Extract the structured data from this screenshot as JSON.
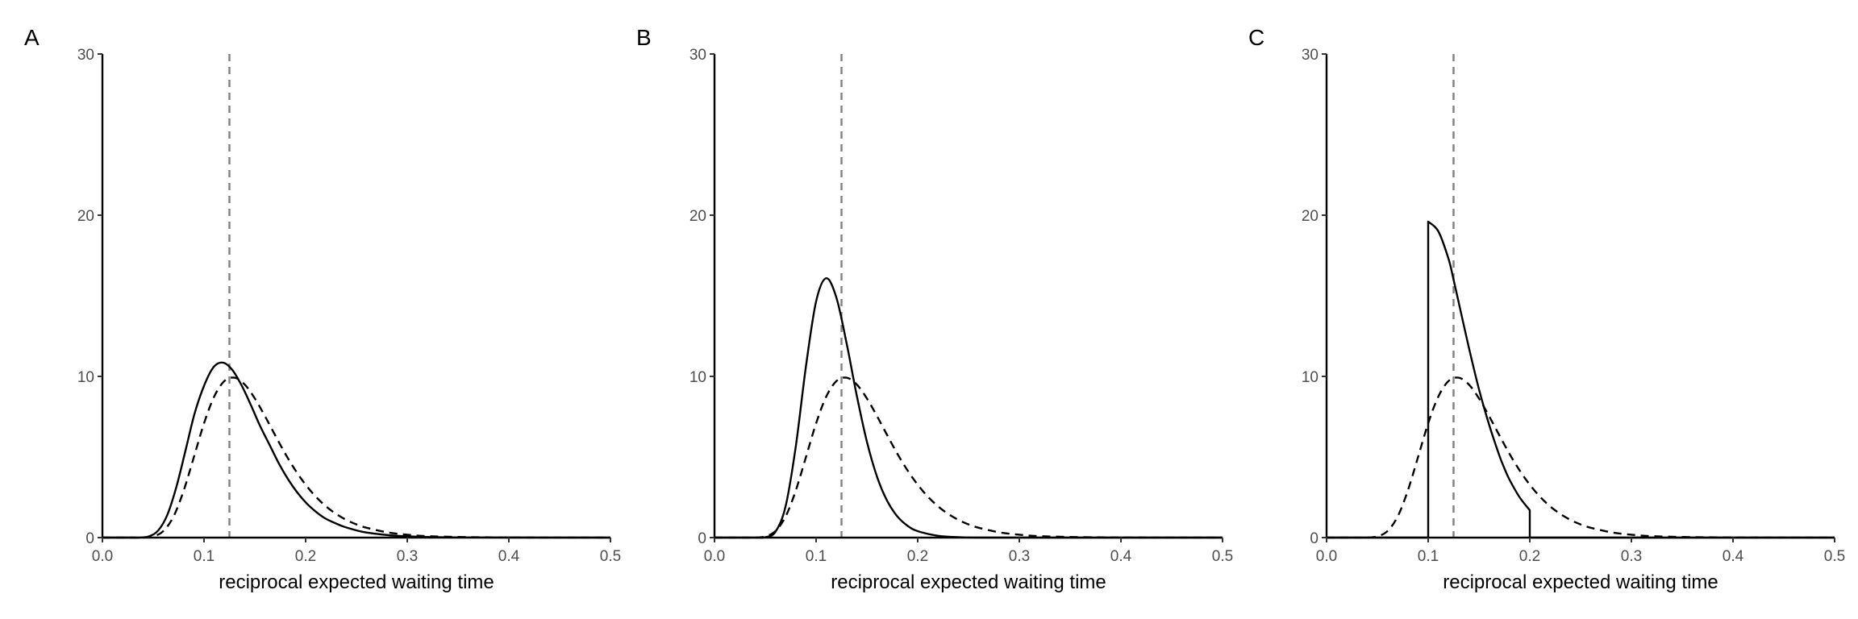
{
  "chart_data": [
    {
      "panel": "A",
      "type": "line",
      "xlabel": "reciprocal expected waiting time",
      "ylabel": "",
      "xlim": [
        0,
        0.5
      ],
      "ylim": [
        0,
        30
      ],
      "xticks": [
        "0.0",
        "0.1",
        "0.2",
        "0.3",
        "0.4",
        "0.5"
      ],
      "yticks": [
        "0",
        "10",
        "20",
        "30"
      ],
      "grid": false,
      "reference_line": {
        "x": 0.125,
        "style": "dashed",
        "color": "#808080"
      },
      "series": [
        {
          "style": "solid",
          "color": "#000000",
          "x": [
            0,
            0.03,
            0.037,
            0.046,
            0.055,
            0.064,
            0.073,
            0.082,
            0.091,
            0.101,
            0.11,
            0.119,
            0.128,
            0.137,
            0.146,
            0.155,
            0.165,
            0.174,
            0.183,
            0.192,
            0.201,
            0.21,
            0.219,
            0.229,
            0.238,
            0.256,
            0.274,
            0.292,
            0.32,
            0.36,
            0.5
          ],
          "y": [
            0,
            0,
            0.005,
            0.08,
            0.45,
            1.43,
            3.19,
            5.46,
            7.76,
            9.57,
            10.62,
            10.85,
            10.39,
            9.44,
            8.24,
            6.95,
            5.69,
            4.56,
            3.59,
            2.78,
            2.12,
            1.61,
            1.2,
            0.9,
            0.67,
            0.36,
            0.2,
            0.1,
            0.04,
            0.01,
            0
          ]
        },
        {
          "style": "dashed",
          "color": "#000000",
          "x": [
            0,
            0.03,
            0.04,
            0.05,
            0.06,
            0.07,
            0.08,
            0.09,
            0.1,
            0.11,
            0.12,
            0.13,
            0.14,
            0.15,
            0.16,
            0.17,
            0.18,
            0.19,
            0.2,
            0.21,
            0.22,
            0.23,
            0.24,
            0.25,
            0.26,
            0.28,
            0.3,
            0.32,
            0.35,
            0.4,
            0.5
          ],
          "y": [
            0,
            0,
            0.005,
            0.074,
            0.41,
            1.31,
            2.92,
            4.99,
            7.09,
            8.75,
            9.71,
            9.92,
            9.5,
            8.63,
            7.53,
            6.35,
            5.2,
            4.17,
            3.28,
            2.54,
            1.94,
            1.47,
            1.1,
            0.82,
            0.61,
            0.33,
            0.18,
            0.09,
            0.04,
            0.01,
            0
          ]
        }
      ]
    },
    {
      "panel": "B",
      "type": "line",
      "xlabel": "reciprocal expected waiting time",
      "ylabel": "",
      "xlim": [
        0,
        0.5
      ],
      "ylim": [
        0,
        30
      ],
      "xticks": [
        "0.0",
        "0.1",
        "0.2",
        "0.3",
        "0.4",
        "0.5"
      ],
      "yticks": [
        "0",
        "10",
        "20",
        "30"
      ],
      "grid": false,
      "reference_line": {
        "x": 0.125,
        "style": "dashed",
        "color": "#808080"
      },
      "series": [
        {
          "style": "solid",
          "color": "#000000",
          "x": [
            0,
            0.04,
            0.05,
            0.06,
            0.07,
            0.08,
            0.09,
            0.1,
            0.11,
            0.12,
            0.13,
            0.14,
            0.15,
            0.16,
            0.17,
            0.18,
            0.19,
            0.2,
            0.22,
            0.24,
            0.28,
            0.5
          ],
          "y": [
            0,
            0,
            0.026,
            0.36,
            1.95,
            5.65,
            10.62,
            14.65,
            16.09,
            14.88,
            12.06,
            8.82,
            5.95,
            3.77,
            2.27,
            1.31,
            0.73,
            0.4,
            0.11,
            0.03,
            0,
            0
          ]
        },
        {
          "style": "dashed",
          "color": "#000000",
          "x": [
            0,
            0.03,
            0.04,
            0.05,
            0.06,
            0.07,
            0.08,
            0.09,
            0.1,
            0.11,
            0.12,
            0.13,
            0.14,
            0.15,
            0.16,
            0.17,
            0.18,
            0.19,
            0.2,
            0.21,
            0.22,
            0.23,
            0.24,
            0.25,
            0.26,
            0.28,
            0.3,
            0.32,
            0.35,
            0.4,
            0.5
          ],
          "y": [
            0,
            0,
            0.005,
            0.074,
            0.41,
            1.31,
            2.92,
            4.99,
            7.09,
            8.75,
            9.71,
            9.92,
            9.5,
            8.63,
            7.53,
            6.35,
            5.2,
            4.17,
            3.28,
            2.54,
            1.94,
            1.47,
            1.1,
            0.82,
            0.61,
            0.33,
            0.18,
            0.09,
            0.04,
            0.01,
            0
          ]
        }
      ]
    },
    {
      "panel": "C",
      "type": "line",
      "xlabel": "reciprocal expected waiting time",
      "ylabel": "",
      "xlim": [
        0,
        0.5
      ],
      "ylim": [
        0,
        30
      ],
      "xticks": [
        "0.0",
        "0.1",
        "0.2",
        "0.3",
        "0.4",
        "0.5"
      ],
      "yticks": [
        "0",
        "10",
        "20",
        "30"
      ],
      "grid": false,
      "reference_line": {
        "x": 0.125,
        "style": "dashed",
        "color": "#808080"
      },
      "series": [
        {
          "style": "solid",
          "color": "#000000",
          "x": [
            0,
            0.1,
            0.1,
            0.11,
            0.12,
            0.125,
            0.13,
            0.14,
            0.15,
            0.16,
            0.17,
            0.175,
            0.18,
            0.19,
            0.2,
            0.2,
            0.5
          ],
          "y": [
            0,
            0,
            19.6,
            19.0,
            17.3,
            16.0,
            14.6,
            11.8,
            9.2,
            7.0,
            5.1,
            4.3,
            3.6,
            2.5,
            1.7,
            0,
            0
          ]
        },
        {
          "style": "dashed",
          "color": "#000000",
          "x": [
            0,
            0.03,
            0.04,
            0.05,
            0.06,
            0.07,
            0.08,
            0.09,
            0.1,
            0.11,
            0.12,
            0.13,
            0.14,
            0.15,
            0.16,
            0.17,
            0.18,
            0.19,
            0.2,
            0.21,
            0.22,
            0.23,
            0.24,
            0.25,
            0.26,
            0.28,
            0.3,
            0.32,
            0.35,
            0.4,
            0.5
          ],
          "y": [
            0,
            0,
            0.005,
            0.074,
            0.41,
            1.31,
            2.92,
            4.99,
            7.09,
            8.75,
            9.71,
            9.92,
            9.5,
            8.63,
            7.53,
            6.35,
            5.2,
            4.17,
            3.28,
            2.54,
            1.94,
            1.47,
            1.1,
            0.82,
            0.61,
            0.33,
            0.18,
            0.09,
            0.04,
            0.01,
            0
          ]
        }
      ]
    }
  ]
}
